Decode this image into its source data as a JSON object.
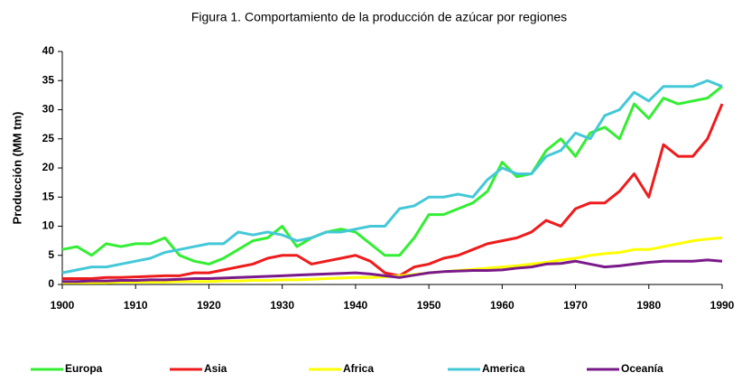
{
  "chart_data": {
    "type": "line",
    "title": "Figura 1. Comportamiento de la producción de azúcar por regiones",
    "y_label": "Producción (MM tm)",
    "x": [
      1900,
      1902,
      1904,
      1906,
      1908,
      1910,
      1912,
      1914,
      1916,
      1918,
      1920,
      1922,
      1924,
      1926,
      1928,
      1930,
      1932,
      1934,
      1936,
      1938,
      1940,
      1942,
      1944,
      1946,
      1948,
      1950,
      1952,
      1954,
      1956,
      1958,
      1960,
      1962,
      1964,
      1966,
      1968,
      1970,
      1972,
      1974,
      1976,
      1978,
      1980,
      1982,
      1984,
      1986,
      1988,
      1990
    ],
    "series": [
      {
        "name": "Europa",
        "color": "#33ee33",
        "values": [
          6,
          6.5,
          5,
          7,
          6.5,
          7,
          7,
          8,
          5,
          4,
          3.5,
          4.5,
          6,
          7.5,
          8,
          10,
          6.5,
          8,
          9,
          9.5,
          9,
          7,
          5,
          5,
          8,
          12,
          12,
          13,
          14,
          16,
          21,
          18.5,
          19,
          23,
          25,
          22,
          26,
          27,
          25,
          31,
          28.5,
          32,
          31,
          31.5,
          32,
          34
        ]
      },
      {
        "name": "Asia",
        "color": "#ee1c1c",
        "values": [
          1,
          1,
          1,
          1.2,
          1.2,
          1.3,
          1.4,
          1.5,
          1.5,
          2,
          2,
          2.5,
          3,
          3.5,
          4.5,
          5,
          5,
          3.5,
          4,
          4.5,
          5,
          4,
          2,
          1.5,
          3,
          3.5,
          4.5,
          5,
          6,
          7,
          7.5,
          8,
          9,
          11,
          10,
          13,
          14,
          14,
          16,
          19,
          15,
          24,
          22,
          22,
          25,
          31
        ]
      },
      {
        "name": "Africa",
        "color": "#ffff00",
        "values": [
          0.3,
          0.3,
          0.3,
          0.3,
          0.4,
          0.4,
          0.4,
          0.4,
          0.5,
          0.5,
          0.5,
          0.6,
          0.6,
          0.7,
          0.7,
          0.8,
          0.8,
          0.9,
          1,
          1.1,
          1.2,
          1.2,
          1.3,
          1.5,
          1.7,
          2,
          2.2,
          2.4,
          2.6,
          2.8,
          3,
          3.2,
          3.5,
          3.8,
          4.2,
          4.5,
          5,
          5.3,
          5.5,
          6,
          6,
          6.5,
          7,
          7.5,
          7.8,
          8
        ]
      },
      {
        "name": "America",
        "color": "#44c8d8",
        "values": [
          2,
          2.5,
          3,
          3,
          3.5,
          4,
          4.5,
          5.5,
          6,
          6.5,
          7,
          7,
          9,
          8.5,
          9,
          8.5,
          7.5,
          8,
          9,
          9,
          9.5,
          10,
          10,
          13,
          13.5,
          15,
          15,
          15.5,
          15,
          18,
          20,
          19,
          19,
          22,
          23,
          26,
          25,
          29,
          30,
          33,
          31.5,
          34,
          34,
          34,
          35,
          34
        ]
      },
      {
        "name": "Oceanía",
        "color": "#7a1a8a",
        "values": [
          0.5,
          0.5,
          0.6,
          0.6,
          0.7,
          0.7,
          0.8,
          0.8,
          0.9,
          1,
          1,
          1.1,
          1.2,
          1.3,
          1.4,
          1.5,
          1.6,
          1.7,
          1.8,
          1.9,
          2,
          1.8,
          1.5,
          1.2,
          1.6,
          2,
          2.2,
          2.3,
          2.4,
          2.4,
          2.5,
          2.8,
          3,
          3.5,
          3.6,
          4,
          3.5,
          3,
          3.2,
          3.5,
          3.8,
          4,
          4,
          4,
          4.2,
          4
        ]
      }
    ],
    "xlim": [
      1900,
      1990
    ],
    "xticks": [
      1900,
      1910,
      1920,
      1930,
      1940,
      1950,
      1960,
      1970,
      1980,
      1990
    ],
    "ylim": [
      0,
      40
    ],
    "yticks": [
      0,
      5,
      10,
      15,
      20,
      25,
      30,
      35,
      40
    ],
    "grid": false,
    "legend": "bottom"
  }
}
